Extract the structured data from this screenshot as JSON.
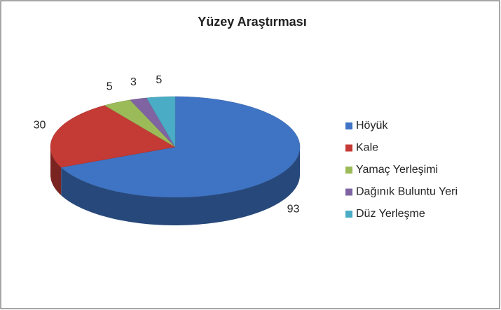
{
  "chart_data": {
    "type": "pie3d",
    "title": "Yüzey Araştırması",
    "categories": [
      "Höyük",
      "Kale",
      "Yamaç Yerleşimi",
      "Dağınık Buluntu Yeri",
      "Düz Yerleşme"
    ],
    "values": [
      93,
      30,
      5,
      3,
      5
    ],
    "colors": [
      "#3f74c4",
      "#c43a35",
      "#9bbb59",
      "#8064a2",
      "#4bacc6"
    ],
    "legend": "right"
  }
}
